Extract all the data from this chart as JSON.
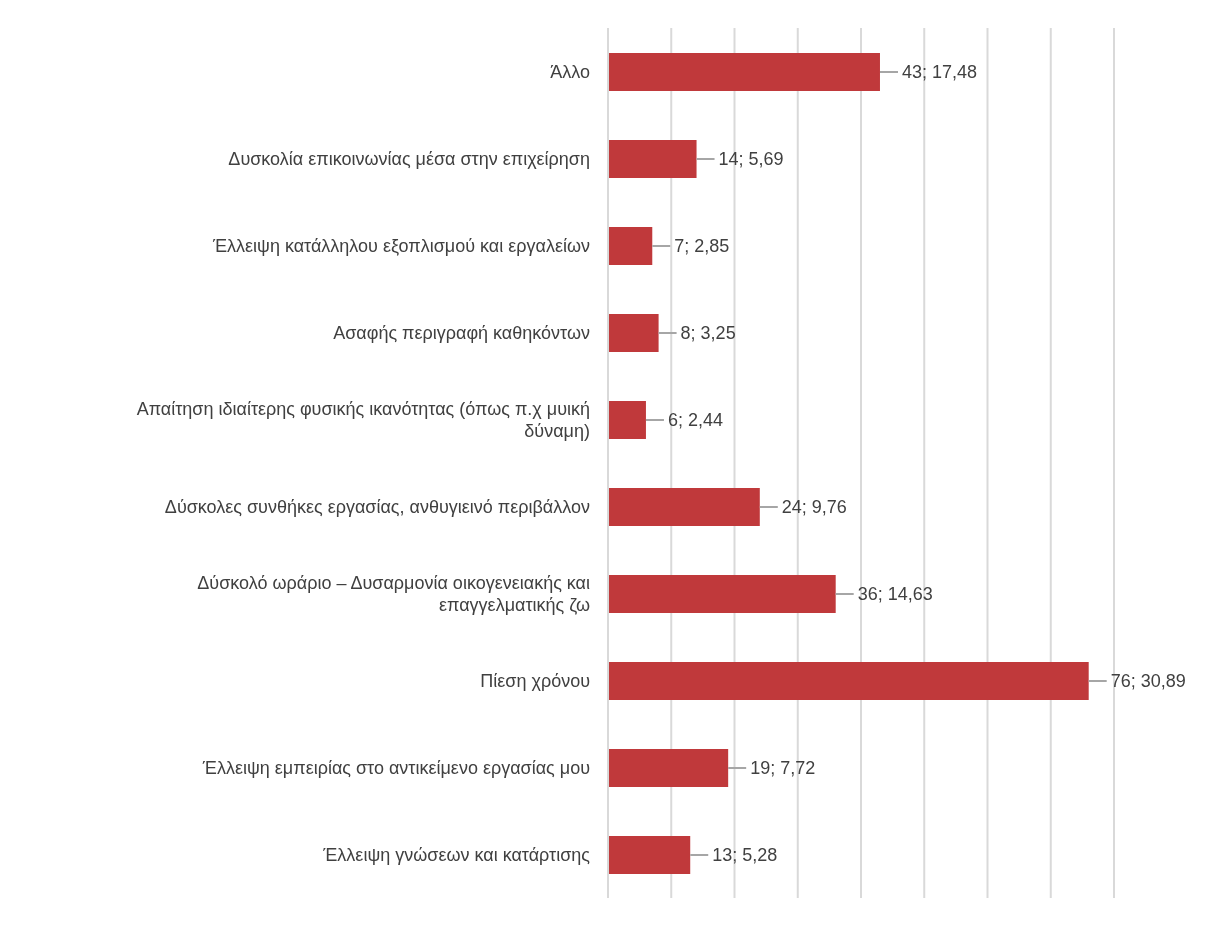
{
  "chart_data": {
    "type": "bar",
    "orientation": "horizontal",
    "categories": [
      "Άλλο",
      "Δυσκολία επικοινωνίας μέσα στην επιχείρηση",
      "Έλλειψη κατάλληλου εξοπλισμού και εργαλείων",
      "Ασαφής περιγραφή καθηκόντων",
      "Απαίτηση ιδιαίτερης φυσικής ικανότητας (όπως π.χ μυική δύναμη)",
      "Δύσκολες συνθήκες εργασίας, ανθυγιεινό περιβάλλον",
      "Δύσκολό ωράριο – Δυσαρμονία οικογενειακής και επαγγελματικής ζω",
      "Πίεση χρόνου",
      "Έλλειψη εμπειρίας στο αντικείμενο εργασίας μου",
      "Έλλειψη γνώσεων και κατάρτισης"
    ],
    "values": [
      43,
      14,
      7,
      8,
      6,
      24,
      36,
      76,
      19,
      13
    ],
    "value_labels": [
      "43; 17,48",
      "14; 5,69",
      "7; 2,85",
      "8; 3,25",
      "6; 2,44",
      "24; 9,76",
      "36; 14,63",
      "76; 30,89",
      "19; 7,72",
      "13; 5,28"
    ],
    "color": "#c0393b",
    "grid": "x",
    "legend": false,
    "tick_labels": "y"
  }
}
